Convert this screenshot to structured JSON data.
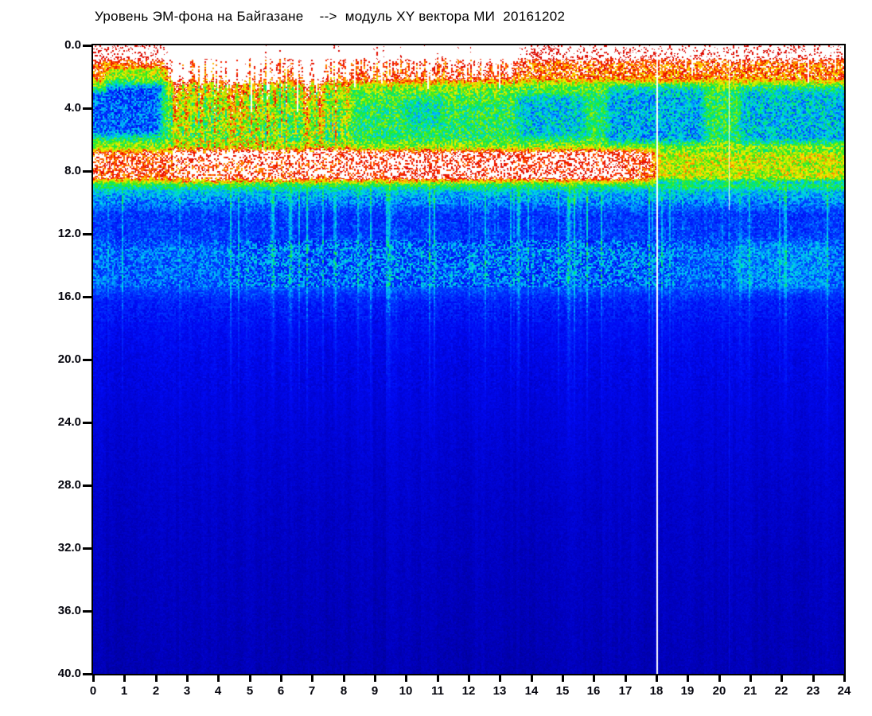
{
  "chart_data": {
    "type": "heatmap",
    "subtype": "spectrogram",
    "title": "Уровень ЭМ-фона на Байгазане    -->  модуль XY вектора МИ  20161202",
    "x_axis": {
      "min": 0,
      "max": 24,
      "tick_labels": [
        "0",
        "1",
        "2",
        "3",
        "4",
        "5",
        "6",
        "7",
        "8",
        "9",
        "10",
        "11",
        "12",
        "13",
        "14",
        "15",
        "16",
        "17",
        "18",
        "19",
        "20",
        "21",
        "22",
        "23",
        "24"
      ]
    },
    "y_axis": {
      "min": 0,
      "max": 40,
      "direction": "down",
      "tick_labels": [
        "0.0",
        "4.0",
        "8.0",
        "12.0",
        "16.0",
        "20.0",
        "24.0",
        "28.0",
        "32.0",
        "36.0",
        "40.0"
      ]
    },
    "colors": {
      "background": "#ffffff",
      "frame": "#000000",
      "text": "#000000"
    },
    "colormap": {
      "white_threshold": 0.978,
      "stops": [
        [
          0.0,
          0,
          0,
          126
        ],
        [
          0.1,
          0,
          0,
          190
        ],
        [
          0.2,
          0,
          10,
          245
        ],
        [
          0.3,
          0,
          60,
          255
        ],
        [
          0.38,
          0,
          150,
          255
        ],
        [
          0.46,
          0,
          215,
          235
        ],
        [
          0.54,
          0,
          230,
          120
        ],
        [
          0.62,
          50,
          235,
          30
        ],
        [
          0.7,
          170,
          235,
          0
        ],
        [
          0.78,
          250,
          240,
          0
        ],
        [
          0.85,
          255,
          150,
          0
        ],
        [
          0.91,
          255,
          40,
          0
        ],
        [
          0.978,
          210,
          0,
          0
        ]
      ]
    },
    "baseline_profile": [
      [
        0,
        1.03
      ],
      [
        0.8,
        1.02
      ],
      [
        1.15,
        0.92
      ],
      [
        2.05,
        0.89
      ],
      [
        2.6,
        0.64
      ],
      [
        3.3,
        0.58
      ],
      [
        5.9,
        0.57
      ],
      [
        6.5,
        0.7
      ],
      [
        6.9,
        0.94
      ],
      [
        8.4,
        0.94
      ],
      [
        8.8,
        0.62
      ],
      [
        9.3,
        0.44
      ],
      [
        10.0,
        0.36
      ],
      [
        10.8,
        0.28
      ],
      [
        12.3,
        0.29
      ],
      [
        13.0,
        0.345
      ],
      [
        15.3,
        0.33
      ],
      [
        16.3,
        0.245
      ],
      [
        17.8,
        0.205
      ],
      [
        20,
        0.175
      ],
      [
        24,
        0.15
      ],
      [
        30,
        0.118
      ],
      [
        40,
        0.085
      ]
    ],
    "blue_patches": [
      {
        "t0": -0.3,
        "t1": 2.35,
        "f0": 2.9,
        "f1": 5.7,
        "amp": 0.25
      },
      {
        "t0": 13.4,
        "t1": 15.9,
        "f0": 3.2,
        "f1": 5.8,
        "amp": 0.13
      },
      {
        "t0": 16.25,
        "t1": 19.7,
        "f0": 2.6,
        "f1": 6.3,
        "amp": 0.16
      },
      {
        "t0": 20.5,
        "t1": 24.3,
        "f0": 2.7,
        "f1": 6.3,
        "amp": 0.14
      },
      {
        "t0": 9.8,
        "t1": 11.3,
        "f0": 3.2,
        "f1": 5.2,
        "amp": 0.08
      }
    ],
    "cyan_haze_patches": [
      {
        "t0": 20.4,
        "t1": 23.6,
        "f0": 12.3,
        "f1": 15.6,
        "amp": 0.045
      }
    ],
    "storm": {
      "t0": 2.3,
      "t1": 8.3,
      "amp": 0.42,
      "f_reach": 7.4
    },
    "mild_activity": {
      "t0": 8.4,
      "t1": 13.7,
      "amp": 0.22,
      "f_reach": 3.9
    },
    "early_green_top": {
      "t0": 0.45,
      "t1": 2.3,
      "drop": 0.19
    },
    "red_band": {
      "f0": 6.6,
      "f1": 8.8,
      "day_boost": 0.05,
      "evening_drop": 0.235,
      "evening_start": 17.8
    },
    "cyan_streaks": {
      "t0": 4.4,
      "t1": 18.6,
      "amp": 0.2,
      "long_hours": [
        5.75,
        6.3,
        9.45,
        13.6,
        15.2
      ]
    },
    "white_gaps": {
      "storm_window": [
        2.9,
        13.6
      ],
      "late_window": [
        15.2,
        23.9
      ],
      "p_storm": 0.07,
      "p_late": 0.035
    },
    "white_lines": {
      "full_hours": [
        18.02
      ],
      "partial": [
        {
          "hour": 20.33,
          "f_max": 10.5
        }
      ]
    },
    "noise_seed": 913
  }
}
